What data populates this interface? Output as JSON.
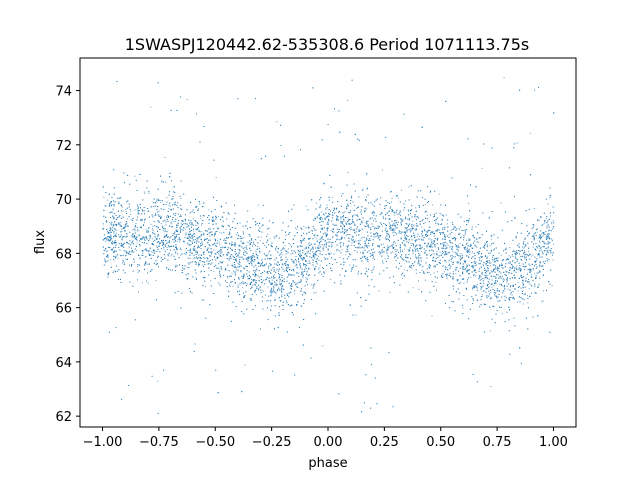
{
  "chart_data": {
    "type": "scatter",
    "title": "1SWASPJ120442.62-535308.6 Period 1071113.75s",
    "xlabel": "phase",
    "ylabel": "flux",
    "xlim": [
      -1.1,
      1.1
    ],
    "ylim": [
      61.6,
      75.2
    ],
    "xticks": [
      -1.0,
      -0.75,
      -0.5,
      -0.25,
      0.0,
      0.25,
      0.5,
      0.75,
      1.0
    ],
    "xtick_labels": [
      "−1.00",
      "−0.75",
      "−0.50",
      "−0.25",
      "0.00",
      "0.25",
      "0.50",
      "0.75",
      "1.00"
    ],
    "yticks": [
      62,
      64,
      66,
      68,
      70,
      72,
      74
    ],
    "ytick_labels": [
      "62",
      "64",
      "66",
      "68",
      "70",
      "72",
      "74"
    ],
    "grid": false,
    "marker_color": "#1f77b4",
    "x_range": [
      -1.0,
      1.0
    ],
    "baseline_flux": [
      [
        -1.0,
        68.8
      ],
      [
        -0.9,
        68.9
      ],
      [
        -0.8,
        68.6
      ],
      [
        -0.7,
        68.8
      ],
      [
        -0.6,
        68.5
      ],
      [
        -0.5,
        68.3
      ],
      [
        -0.4,
        67.8
      ],
      [
        -0.3,
        67.5
      ],
      [
        -0.2,
        67.2
      ],
      [
        -0.1,
        67.8
      ],
      [
        0.0,
        68.8
      ],
      [
        0.1,
        68.9
      ],
      [
        0.2,
        68.6
      ],
      [
        0.3,
        68.8
      ],
      [
        0.4,
        68.5
      ],
      [
        0.5,
        68.3
      ],
      [
        0.6,
        67.8
      ],
      [
        0.7,
        67.5
      ],
      [
        0.8,
        67.2
      ],
      [
        0.9,
        67.8
      ],
      [
        1.0,
        68.8
      ]
    ],
    "scatter_sd": 1.0,
    "flux_range": [
      62.0,
      74.5
    ]
  }
}
